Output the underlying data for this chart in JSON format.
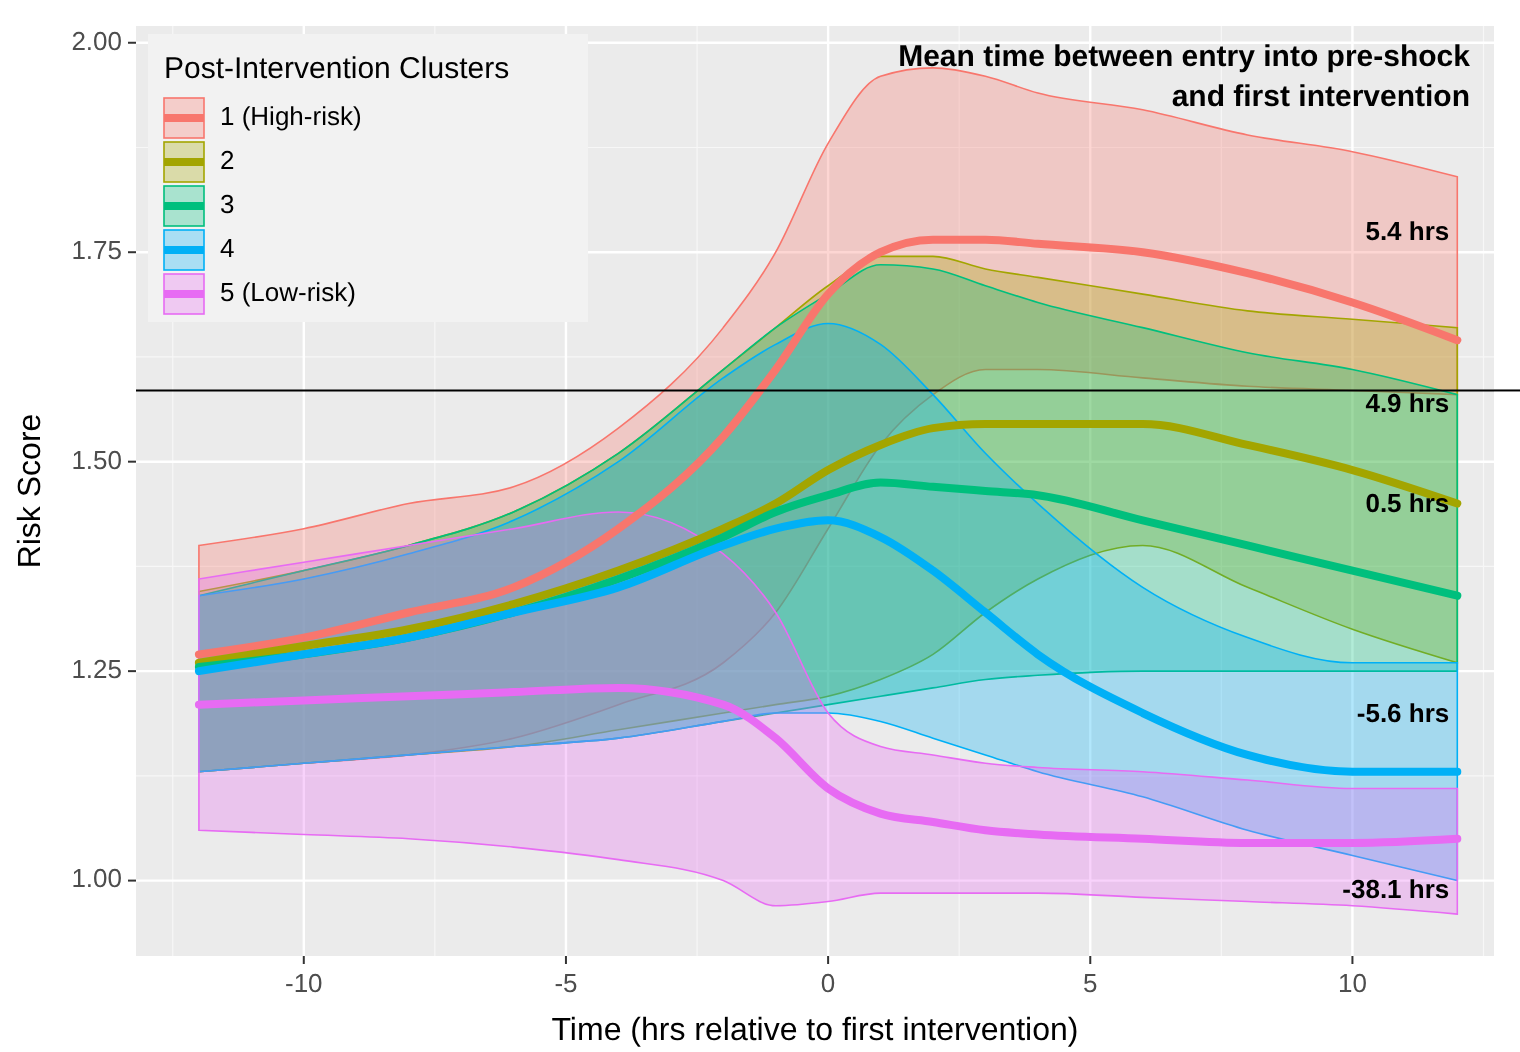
{
  "chart_data": {
    "type": "line",
    "xlabel": "Time (hrs relative to first intervention)",
    "ylabel": "Risk Score",
    "legend_title": "Post-Intervention Clusters",
    "legend": "top left",
    "grid": true,
    "line_style": "solid",
    "x": [
      -12,
      -10,
      -8,
      -6,
      -4,
      -2,
      -1,
      0,
      1,
      2,
      3,
      4,
      6,
      8,
      10,
      12
    ],
    "xlim": [
      -13.2,
      12.7
    ],
    "xticks": [
      -10,
      -5,
      0,
      5,
      10
    ],
    "ylim": [
      0.91,
      2.02
    ],
    "yticks": [
      {
        "value": 1,
        "label": "1.00"
      },
      {
        "value": 1.25,
        "label": "1.25"
      },
      {
        "value": 1.5,
        "label": "1.50"
      },
      {
        "value": 1.75,
        "label": "1.75"
      },
      {
        "value": 2,
        "label": "2.00"
      }
    ],
    "series": [
      {
        "name": "1 (High-risk)",
        "color": "#f8766d",
        "values": [
          1.27,
          1.29,
          1.32,
          1.35,
          1.42,
          1.53,
          1.61,
          1.7,
          1.75,
          1.765,
          1.765,
          1.76,
          1.75,
          1.725,
          1.69,
          1.645
        ],
        "upper": [
          1.4,
          1.42,
          1.45,
          1.47,
          1.54,
          1.66,
          1.75,
          1.88,
          1.96,
          1.97,
          1.96,
          1.94,
          1.92,
          1.89,
          1.87,
          1.84
        ],
        "lower": [
          1.13,
          1.14,
          1.15,
          1.17,
          1.21,
          1.26,
          1.32,
          1.42,
          1.52,
          1.58,
          1.61,
          1.61,
          1.6,
          1.59,
          1.585,
          1.58
        ]
      },
      {
        "name": "2",
        "color": "#a3a500",
        "values": [
          1.26,
          1.28,
          1.3,
          1.33,
          1.37,
          1.42,
          1.45,
          1.49,
          1.52,
          1.54,
          1.545,
          1.545,
          1.545,
          1.52,
          1.49,
          1.45
        ],
        "upper": [
          1.345,
          1.37,
          1.4,
          1.44,
          1.51,
          1.61,
          1.66,
          1.71,
          1.745,
          1.745,
          1.73,
          1.72,
          1.7,
          1.68,
          1.67,
          1.66
        ],
        "lower": [
          1.13,
          1.14,
          1.15,
          1.16,
          1.18,
          1.2,
          1.21,
          1.22,
          1.24,
          1.27,
          1.32,
          1.36,
          1.4,
          1.35,
          1.3,
          1.26
        ]
      },
      {
        "name": "3",
        "color": "#00bf7d",
        "values": [
          1.255,
          1.27,
          1.29,
          1.32,
          1.36,
          1.41,
          1.44,
          1.46,
          1.475,
          1.47,
          1.465,
          1.46,
          1.43,
          1.4,
          1.37,
          1.34
        ],
        "upper": [
          1.34,
          1.37,
          1.4,
          1.44,
          1.51,
          1.61,
          1.66,
          1.7,
          1.735,
          1.73,
          1.71,
          1.69,
          1.66,
          1.63,
          1.61,
          1.58
        ],
        "lower": [
          1.13,
          1.14,
          1.15,
          1.16,
          1.17,
          1.19,
          1.2,
          1.21,
          1.22,
          1.23,
          1.24,
          1.245,
          1.25,
          1.25,
          1.25,
          1.25
        ]
      },
      {
        "name": "4",
        "color": "#00b0f6",
        "values": [
          1.25,
          1.27,
          1.29,
          1.32,
          1.35,
          1.4,
          1.42,
          1.43,
          1.41,
          1.37,
          1.32,
          1.27,
          1.2,
          1.15,
          1.13,
          1.13
        ],
        "upper": [
          1.34,
          1.36,
          1.39,
          1.43,
          1.5,
          1.6,
          1.64,
          1.665,
          1.64,
          1.58,
          1.51,
          1.45,
          1.35,
          1.29,
          1.26,
          1.26
        ],
        "lower": [
          1.13,
          1.14,
          1.15,
          1.16,
          1.17,
          1.19,
          1.2,
          1.2,
          1.19,
          1.17,
          1.15,
          1.13,
          1.1,
          1.06,
          1.03,
          1.0
        ]
      },
      {
        "name": "5 (Low-risk)",
        "color": "#e76bf3",
        "values": [
          1.21,
          1.215,
          1.22,
          1.225,
          1.23,
          1.21,
          1.17,
          1.11,
          1.08,
          1.07,
          1.06,
          1.055,
          1.05,
          1.045,
          1.045,
          1.05
        ],
        "upper": [
          1.36,
          1.38,
          1.4,
          1.42,
          1.44,
          1.39,
          1.32,
          1.2,
          1.16,
          1.15,
          1.14,
          1.135,
          1.13,
          1.12,
          1.11,
          1.11
        ],
        "lower": [
          1.06,
          1.055,
          1.05,
          1.04,
          1.025,
          1.0,
          0.97,
          0.975,
          0.985,
          0.985,
          0.985,
          0.985,
          0.98,
          0.975,
          0.97,
          0.96
        ]
      }
    ],
    "ref_lines": [
      {
        "axis": "y",
        "value": 1.585,
        "color": "#000000"
      }
    ],
    "annotations": [
      "Mean time between entry into pre-shock and first intervention",
      "5.4 hrs",
      "4.9 hrs",
      "0.5 hrs",
      "-5.6 hrs",
      "-38.1 hrs"
    ]
  }
}
